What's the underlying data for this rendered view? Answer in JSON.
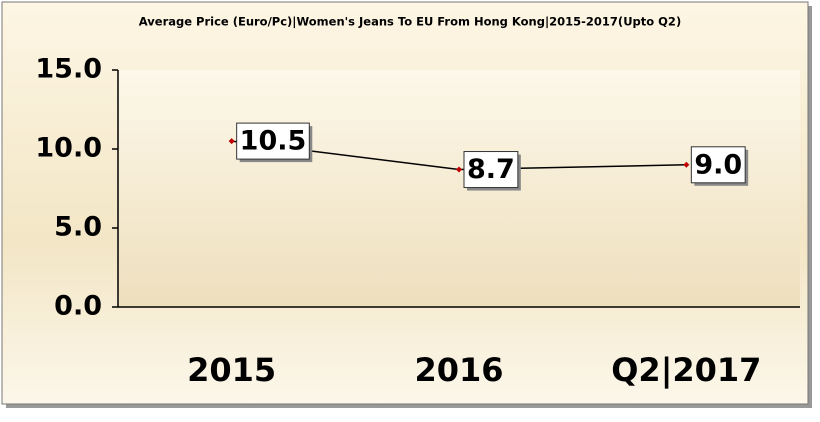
{
  "chart_data": {
    "type": "line",
    "title": "Average Price (Euro/Pc)|Women's Jeans To EU From Hong Kong|2015-2017(Upto Q2)",
    "categories": [
      "2015",
      "2016",
      "Q2|2017"
    ],
    "values": [
      10.5,
      8.7,
      9.0
    ],
    "value_labels": [
      "10.5",
      "8.7",
      "9.0"
    ],
    "color": "#000000",
    "marker_color": "#c00000",
    "ylim": [
      0,
      15
    ],
    "yticks": [
      {
        "value": 0,
        "label": "0.0"
      },
      {
        "value": 5,
        "label": "5.0"
      },
      {
        "value": 10,
        "label": "10.0"
      },
      {
        "value": 15,
        "label": "15.0"
      }
    ],
    "grid": false
  }
}
